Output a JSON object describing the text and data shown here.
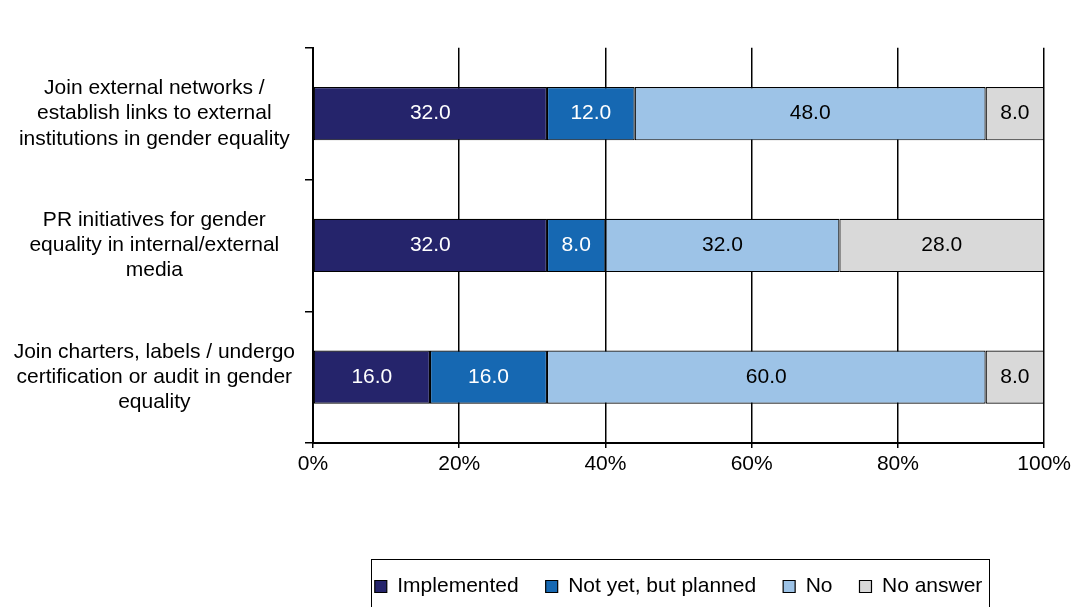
{
  "chart_data": {
    "type": "bar",
    "orientation": "horizontal",
    "stacked": true,
    "categories": [
      "Join external networks / establish links to external institutions in gender equality",
      "PR initiatives for gender equality in internal/external media",
      "Join charters, labels / undergo certification or audit in gender equality"
    ],
    "series": [
      {
        "name": "Implemented",
        "color": "#25246b",
        "values": [
          32,
          32,
          16
        ],
        "value_labels": [
          "32.0",
          "32.0",
          "16.0"
        ]
      },
      {
        "name": "Not yet, but planned",
        "color": "#1668b2",
        "values": [
          12,
          8,
          16
        ],
        "value_labels": [
          "12.0",
          "8.0",
          "16.0"
        ]
      },
      {
        "name": "No",
        "color": "#9dc3e7",
        "values": [
          48,
          32,
          60
        ],
        "value_labels": [
          "48.0",
          "32.0",
          "60.0"
        ]
      },
      {
        "name": "No answer",
        "color": "#d9d9d9",
        "values": [
          8,
          28,
          8
        ],
        "value_labels": [
          "8.0",
          "28.0",
          "8.0"
        ]
      }
    ],
    "xlim": [
      0,
      100
    ],
    "xticks": [
      {
        "value": 0,
        "label": "0%"
      },
      {
        "value": 20,
        "label": "20%"
      },
      {
        "value": 40,
        "label": "40%"
      },
      {
        "value": 60,
        "label": "60%"
      },
      {
        "value": 80,
        "label": "80%"
      },
      {
        "value": 100,
        "label": "100%"
      }
    ],
    "grid": "x",
    "legend": "bottom"
  }
}
